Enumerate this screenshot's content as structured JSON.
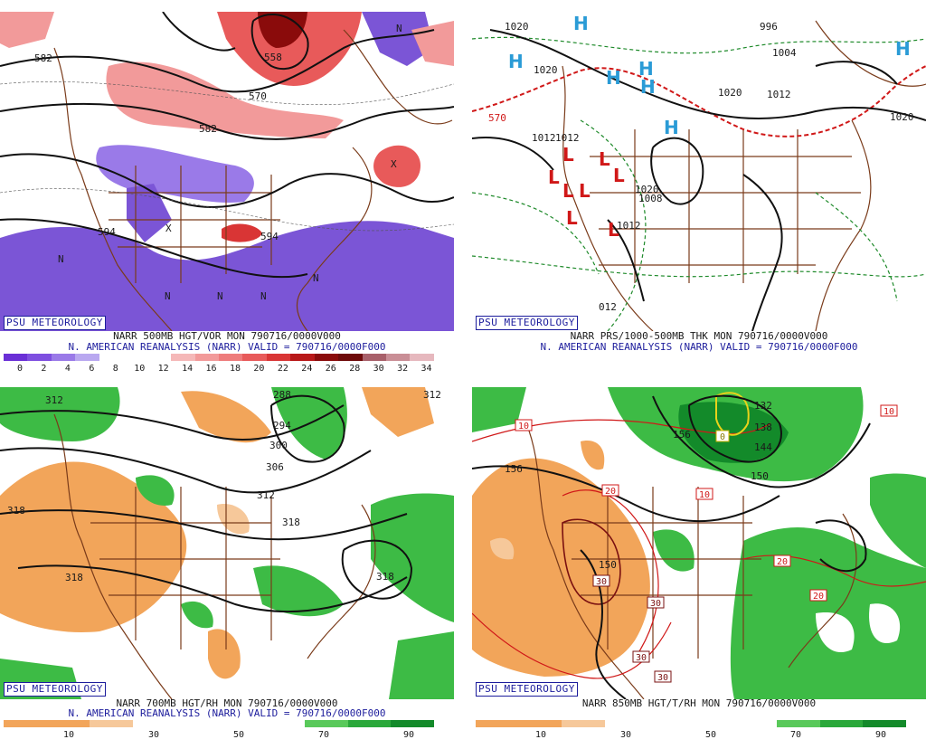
{
  "panels": [
    {
      "id": "500mb",
      "badge": "PSU METEOROLOGY",
      "line1": "NARR 500MB HGT/VOR MON 790716/0000V000",
      "line2": "N. AMERICAN REANALYSIS (NARR) VALID = 790716/0000F000",
      "contour_labels": [
        "582",
        "558",
        "570",
        "582",
        "594",
        "594",
        "X",
        "N",
        "N",
        "N",
        "N",
        "N",
        "N",
        "X"
      ],
      "colorbar": {
        "ticks": [
          "0",
          "2",
          "4",
          "6",
          "8",
          "10",
          "12",
          "14",
          "16",
          "18",
          "20",
          "22",
          "24",
          "26",
          "28",
          "30",
          "32",
          "34"
        ],
        "colors": [
          "#6a2fd6",
          "#7e4fe0",
          "#9a7ae8",
          "#b9a8f0",
          "#ffffff",
          "#ffffff",
          "#ffffff",
          "#f5b8b8",
          "#f29a9a",
          "#ee7c7c",
          "#e85a5a",
          "#d93535",
          "#b81818",
          "#8a0b0b",
          "#6e0a0a",
          "#a8606a",
          "#c98e96",
          "#e6b8be"
        ]
      }
    },
    {
      "id": "thk",
      "badge": "PSU METEOROLOGY",
      "line1": "NARR PRS/1000-500MB THK MON 790716/0000V000",
      "line2": "N. AMERICAN REANALYSIS (NARR) VALID = 790716/0000F000",
      "contour_labels": [
        "1020",
        "1020",
        "1020",
        "1020",
        "1012",
        "1012",
        "1008",
        "1020",
        "1012",
        "1012",
        "996",
        "1004",
        "570",
        "012"
      ],
      "highs": [
        "H",
        "H",
        "H",
        "H",
        "H",
        "H",
        "H"
      ],
      "lows": [
        "L",
        "L",
        "L",
        "L",
        "L",
        "L",
        "L",
        "L"
      ],
      "colorbar": {
        "ticks": [],
        "colors": []
      }
    },
    {
      "id": "700mb",
      "badge": "PSU METEOROLOGY",
      "line1": "NARR 700MB HGT/RH MON 790716/0000V000",
      "line2": "N. AMERICAN REANALYSIS (NARR) VALID = 790716/0000F000",
      "contour_labels": [
        "312",
        "288",
        "294",
        "300",
        "306",
        "312",
        "318",
        "318",
        "318",
        "318",
        "312"
      ],
      "colorbar": {
        "ticks": [
          "10",
          "30",
          "50",
          "70",
          "90"
        ],
        "colors": [
          "#f2a55a",
          "#f2a55a",
          "#f6c89a",
          "#ffffff",
          "#ffffff",
          "#ffffff",
          "#ffffff",
          "#59c95a",
          "#2aa83a",
          "#138a2a"
        ]
      }
    },
    {
      "id": "850mb",
      "badge": "PSU METEOROLOGY",
      "line1": "NARR 850MB HGT/T/RH MON 790716/0000V000",
      "line2": "",
      "contour_labels": [
        "156",
        "156",
        "150",
        "144",
        "138",
        "132",
        "150"
      ],
      "temp_labels": [
        "10",
        "10",
        "10",
        "20",
        "20",
        "20",
        "30",
        "30",
        "30",
        "30",
        "0"
      ],
      "colorbar": {
        "ticks": [
          "10",
          "30",
          "50",
          "70",
          "90"
        ],
        "colors": [
          "#f2a55a",
          "#f2a55a",
          "#f6c89a",
          "#ffffff",
          "#ffffff",
          "#ffffff",
          "#ffffff",
          "#59c95a",
          "#2aa83a",
          "#138a2a"
        ]
      }
    }
  ],
  "colors": {
    "border": "#7a3b1a",
    "contour": "#111111",
    "accent_text": "#1c1c9c",
    "high": "#2a9bd6",
    "low": "#d01818",
    "orange": "#f2a55a",
    "green": "#3dbb45",
    "purple": "#7b55d6",
    "red": "#e85a5a"
  }
}
